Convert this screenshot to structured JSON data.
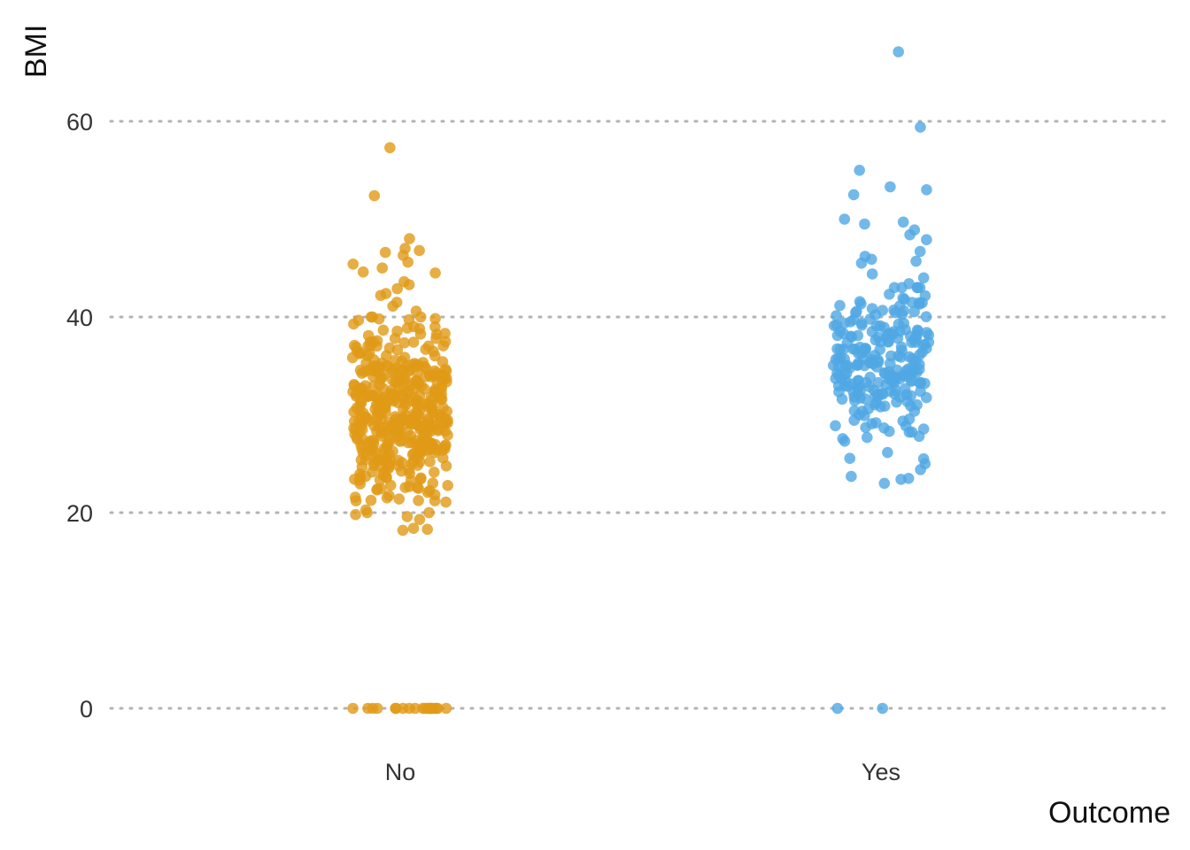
{
  "chart_data": {
    "type": "scatter",
    "subtype": "jitter strip plot",
    "xlabel": "Outcome",
    "ylabel": "BMI",
    "categories": [
      "No",
      "Yes"
    ],
    "y_ticks": [
      "0",
      "20",
      "40",
      "60"
    ],
    "ylim": [
      -3,
      69
    ],
    "grid": "horizontal dotted",
    "legend": "none",
    "series": [
      {
        "category": "No",
        "color": "#E09A16",
        "outliers": [
          57.3,
          52.4,
          48.0,
          47.0,
          46.8,
          46.6,
          46.3,
          45.6,
          45.4,
          45.0,
          44.6,
          44.5,
          43.6,
          43.3,
          42.9,
          42.4,
          42.2,
          41.5,
          41.1,
          40.6,
          18.4,
          18.3,
          18.2,
          19.3,
          19.6,
          19.8
        ],
        "zeros": 19,
        "core_count": 420,
        "core_range": [
          20,
          40
        ],
        "core_center": 30.2
      },
      {
        "category": "Yes",
        "color": "#4FA8E3",
        "outliers": [
          67.1,
          59.4,
          55.0,
          53.3,
          53.0,
          52.5,
          50.0,
          49.7,
          49.5,
          48.9,
          48.4,
          47.9,
          46.7,
          46.2,
          45.9,
          45.7,
          45.5,
          44.4,
          44.0,
          43.4,
          23.0,
          23.4,
          23.5,
          23.7,
          24.4,
          25.0,
          25.5
        ],
        "zeros": 2,
        "core_count": 230,
        "core_range": [
          24,
          43
        ],
        "core_center": 35.1
      }
    ]
  }
}
